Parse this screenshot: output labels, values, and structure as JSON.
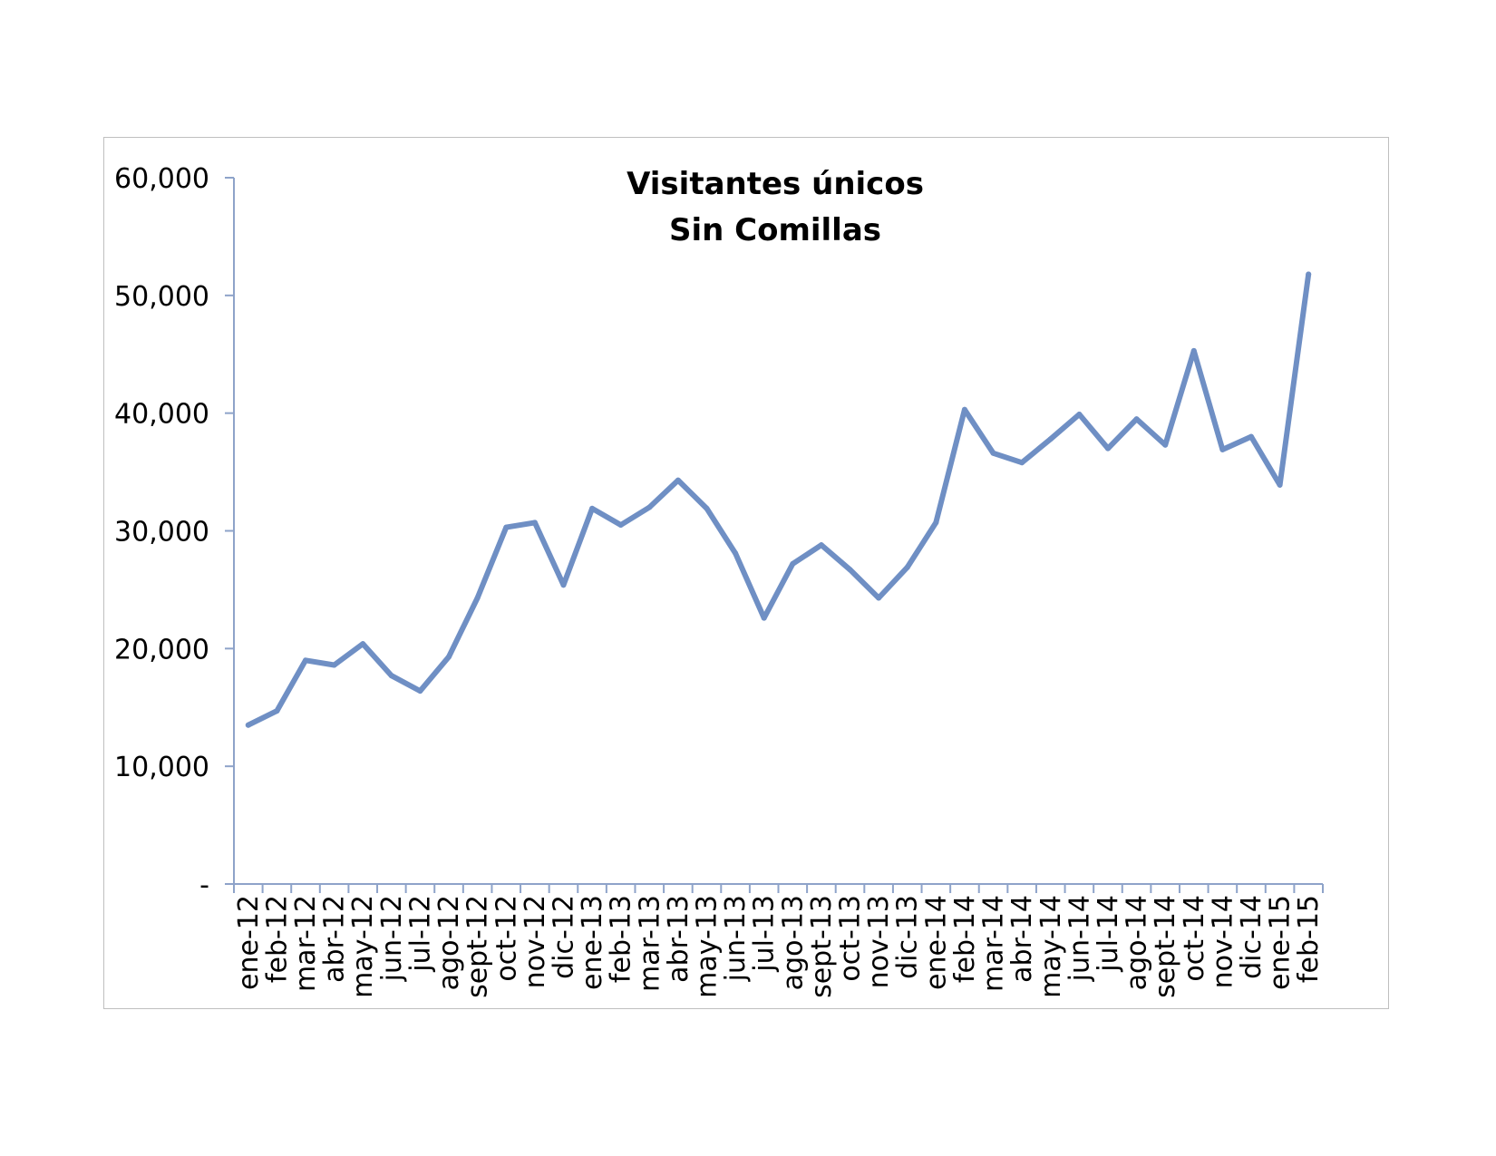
{
  "chart_data": {
    "type": "line",
    "title": [
      "Visitantes únicos",
      "Sin Comillas"
    ],
    "xlabel": "",
    "ylabel": "",
    "ylim": [
      0,
      60000
    ],
    "yticks": [
      0,
      10000,
      20000,
      30000,
      40000,
      50000,
      60000
    ],
    "ytick_labels": [
      "-",
      "10,000",
      "20,000",
      "30,000",
      "40,000",
      "50,000",
      "60,000"
    ],
    "grid": false,
    "legend": "none",
    "line_color": "#6f8fc4",
    "categories": [
      "ene-12",
      "feb-12",
      "mar-12",
      "abr-12",
      "may-12",
      "jun-12",
      "jul-12",
      "ago-12",
      "sept-12",
      "oct-12",
      "nov-12",
      "dic-12",
      "ene-13",
      "feb-13",
      "mar-13",
      "abr-13",
      "may-13",
      "jun-13",
      "jul-13",
      "ago-13",
      "sept-13",
      "oct-13",
      "nov-13",
      "dic-13",
      "ene-14",
      "feb-14",
      "mar-14",
      "abr-14",
      "may-14",
      "jun-14",
      "jul-14",
      "ago-14",
      "sept-14",
      "oct-14",
      "nov-14",
      "dic-14",
      "ene-15",
      "feb-15"
    ],
    "series": [
      {
        "values": [
          13500,
          14700,
          19000,
          18600,
          20400,
          17700,
          16400,
          19300,
          24300,
          30300,
          30700,
          25400,
          31900,
          30500,
          32000,
          34300,
          31900,
          28100,
          22600,
          27200,
          28800,
          26700,
          24300,
          26900,
          30700,
          40300,
          36600,
          35800,
          37800,
          39900,
          37000,
          39500,
          37300,
          45300,
          36900,
          38000,
          33900,
          51800
        ]
      }
    ]
  }
}
